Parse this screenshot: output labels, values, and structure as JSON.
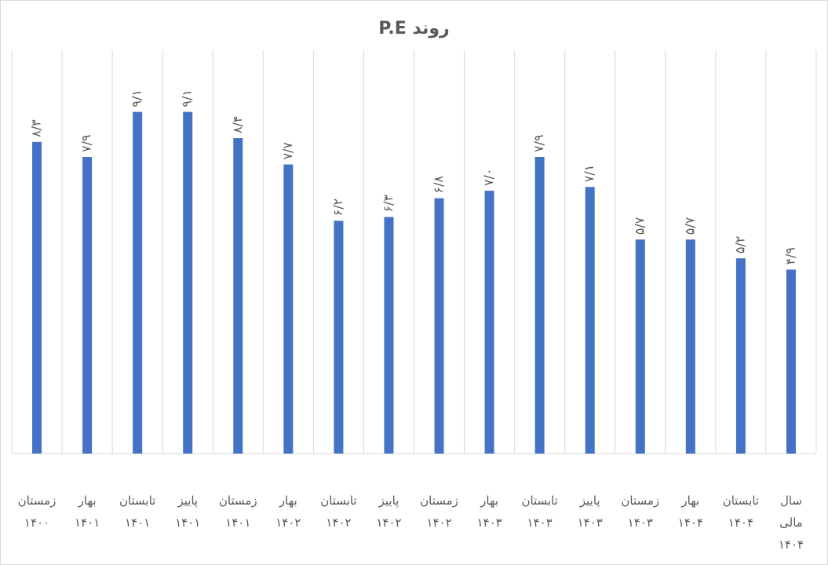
{
  "chart_data": {
    "type": "bar",
    "title": "روند  P.E",
    "categories": [
      [
        "زمستان",
        "۱۴۰۰"
      ],
      [
        "بهار",
        "۱۴۰۱"
      ],
      [
        "تابستان",
        "۱۴۰۱"
      ],
      [
        "پاییز",
        "۱۴۰۱"
      ],
      [
        "زمستان",
        "۱۴۰۱"
      ],
      [
        "بهار",
        "۱۴۰۲"
      ],
      [
        "تابستان",
        "۱۴۰۲"
      ],
      [
        "پاییز",
        "۱۴۰۲"
      ],
      [
        "زمستان",
        "۱۴۰۲"
      ],
      [
        "بهار",
        "۱۴۰۳"
      ],
      [
        "تابستان",
        "۱۴۰۳"
      ],
      [
        "پاییز",
        "۱۴۰۳"
      ],
      [
        "زمستان",
        "۱۴۰۳"
      ],
      [
        "بهار",
        "۱۴۰۴"
      ],
      [
        "تابستان",
        "۱۴۰۴"
      ],
      [
        "سال",
        "مالی",
        "۱۴۰۴"
      ]
    ],
    "values": [
      8.3,
      7.9,
      9.1,
      9.1,
      8.4,
      7.7,
      6.2,
      6.3,
      6.8,
      7.0,
      7.9,
      7.1,
      5.7,
      5.7,
      5.2,
      4.9
    ],
    "data_labels": [
      "۸/۳",
      "۷/۹",
      "۹/۱",
      "۹/۱",
      "۸/۴",
      "۷/۷",
      "۶/۲",
      "۶/۳",
      "۶/۸",
      "۷/۰",
      "۷/۹",
      "۷/۱",
      "۵/۷",
      "۵/۷",
      "۵/۲",
      "۴/۹"
    ],
    "ylim": [
      0,
      10
    ],
    "xlabel": "",
    "ylabel": "",
    "grid": "vertical category separators",
    "legend": "none",
    "colors": {
      "bar": "#4472c4",
      "grid": "#d9d9d9",
      "text": "#595959",
      "axis": "#d9d9d9"
    }
  }
}
